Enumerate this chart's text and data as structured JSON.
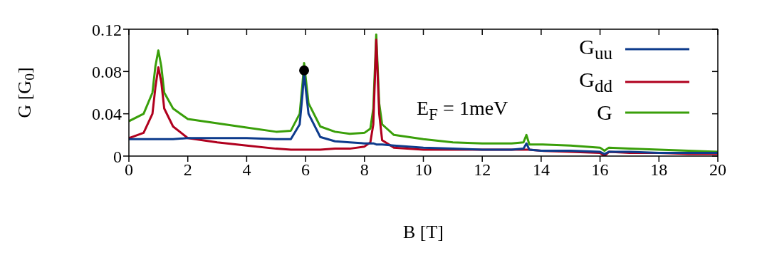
{
  "chart_data": {
    "type": "line",
    "xlabel": "B [T]",
    "ylabel": "G [G$_{0}$]",
    "x": [
      0,
      0.5,
      0.8,
      0.9,
      1.0,
      1.1,
      1.2,
      1.5,
      2,
      3,
      4,
      5,
      5.5,
      5.8,
      5.9,
      5.95,
      6.0,
      6.1,
      6.5,
      7,
      7.5,
      8,
      8.2,
      8.3,
      8.4,
      8.5,
      8.6,
      9,
      10,
      11,
      12,
      13,
      13.4,
      13.5,
      13.6,
      14,
      15,
      16,
      16.15,
      16.3,
      17,
      18,
      19,
      20
    ],
    "series": [
      {
        "name": "G$_{uu}$",
        "color": "#0d3b8c",
        "values": [
          0.016,
          0.016,
          0.016,
          0.016,
          0.016,
          0.016,
          0.016,
          0.016,
          0.017,
          0.017,
          0.017,
          0.016,
          0.016,
          0.03,
          0.06,
          0.08,
          0.065,
          0.04,
          0.018,
          0.014,
          0.013,
          0.012,
          0.012,
          0.012,
          0.011,
          0.011,
          0.011,
          0.01,
          0.008,
          0.007,
          0.006,
          0.006,
          0.007,
          0.012,
          0.006,
          0.005,
          0.005,
          0.004,
          0.002,
          0.004,
          0.004,
          0.003,
          0.003,
          0.003
        ]
      },
      {
        "name": "G$_{dd}$",
        "color": "#b0001e",
        "values": [
          0.017,
          0.022,
          0.04,
          0.065,
          0.084,
          0.07,
          0.045,
          0.028,
          0.017,
          0.013,
          0.01,
          0.007,
          0.006,
          0.006,
          0.006,
          0.006,
          0.006,
          0.006,
          0.006,
          0.007,
          0.007,
          0.009,
          0.013,
          0.03,
          0.11,
          0.04,
          0.015,
          0.008,
          0.006,
          0.006,
          0.006,
          0.006,
          0.006,
          0.006,
          0.006,
          0.005,
          0.004,
          0.003,
          0,
          0.004,
          0.003,
          0.003,
          0.002,
          0.002
        ]
      },
      {
        "name": "G",
        "color": "#3a9f0a",
        "values": [
          0.033,
          0.04,
          0.06,
          0.085,
          0.1,
          0.085,
          0.06,
          0.045,
          0.035,
          0.031,
          0.027,
          0.023,
          0.024,
          0.04,
          0.07,
          0.088,
          0.075,
          0.05,
          0.028,
          0.023,
          0.021,
          0.022,
          0.026,
          0.045,
          0.115,
          0.05,
          0.03,
          0.02,
          0.016,
          0.013,
          0.012,
          0.012,
          0.013,
          0.02,
          0.011,
          0.011,
          0.01,
          0.008,
          0.005,
          0.008,
          0.007,
          0.006,
          0.005,
          0.004
        ]
      },
      {
        "type": "scatter",
        "color": "#000000",
        "marker": "circle",
        "x": [
          5.95
        ],
        "values": [
          0.081
        ]
      }
    ],
    "annotations": [
      "E$_{F}$ = 1meV"
    ],
    "xlim": [
      0,
      20
    ],
    "xticks": [
      0,
      2,
      4,
      6,
      8,
      10,
      12,
      14,
      16,
      18,
      20
    ],
    "ylim": [
      0,
      0.12
    ],
    "yticks": [
      0,
      0.04,
      0.08,
      0.12
    ],
    "legend": "top right",
    "line_style": "solid"
  }
}
